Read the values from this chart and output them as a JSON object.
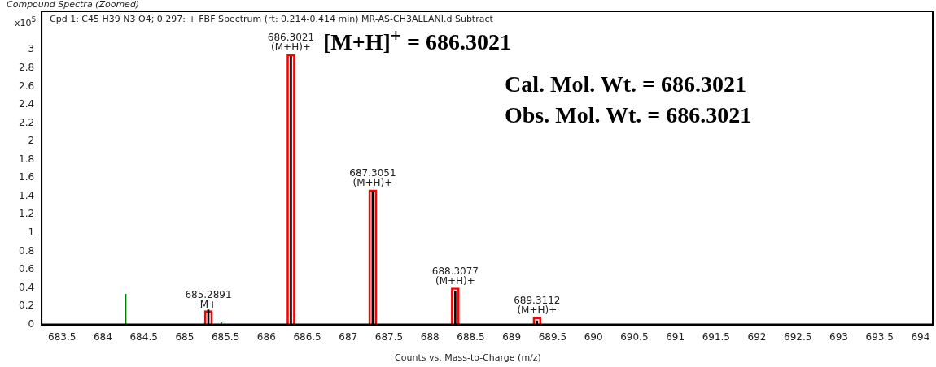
{
  "chart_data": {
    "type": "bar",
    "title": "Compound Spectra (Zoomed)",
    "subtitle": "Cpd 1: C45 H39 N3 O4; 0.297: + FBF Spectrum (rt: 0.214-0.414 min) MR-AS-CH3ALLANI.d  Subtract",
    "xlabel": "Counts vs. Mass-to-Charge (m/z)",
    "ylabel": "x10$^{5}$",
    "series": [
      {
        "color": "#ff0000",
        "x": [
          685.29,
          686.3,
          687.3,
          688.31,
          689.31
        ],
        "values": [
          0.15,
          2.95,
          1.47,
          0.4,
          0.08
        ]
      },
      {
        "color": "#000000",
        "x": [
          685.29,
          686.3,
          687.3,
          688.31,
          689.31
        ],
        "values": [
          0.16,
          2.93,
          1.45,
          0.36,
          0.04
        ]
      },
      {
        "color": "#008000",
        "x": [
          684.28,
          685.45
        ],
        "values": [
          0.33,
          0.02
        ]
      }
    ],
    "xlim": [
      683.25,
      694.15
    ],
    "xticks": [
      683.5,
      684,
      684.5,
      685,
      685.5,
      686,
      686.5,
      687,
      687.5,
      688,
      688.5,
      689,
      689.5,
      690,
      690.5,
      691,
      691.5,
      692,
      692.5,
      693,
      693.5,
      694
    ],
    "ylim": [
      0,
      3.42
    ],
    "yticks": [
      0,
      0.2,
      0.4,
      0.6,
      0.8,
      1,
      1.2,
      1.4,
      1.6,
      1.8,
      2,
      2.2,
      2.4,
      2.6,
      2.8,
      3
    ],
    "annotations": [
      {
        "text": "685.2891\nM+",
        "x": 685.29,
        "y": 0.14
      },
      {
        "text": "686.3021\n(M+H)+",
        "x": 686.3,
        "y": 2.95
      },
      {
        "text": "687.3051\n(M+H)+",
        "x": 687.3,
        "y": 1.47
      },
      {
        "text": "688.3077\n(M+H)+",
        "x": 688.31,
        "y": 0.4
      },
      {
        "text": "689.3112\n(M+H)+",
        "x": 689.31,
        "y": 0.08
      },
      "[M+H]$^{+}$ = 686.3021",
      "Cal. Mol. Wt. = 686.3021",
      "Obs. Mol. Wt. = 686.3021"
    ],
    "grid": false,
    "legend": false
  }
}
